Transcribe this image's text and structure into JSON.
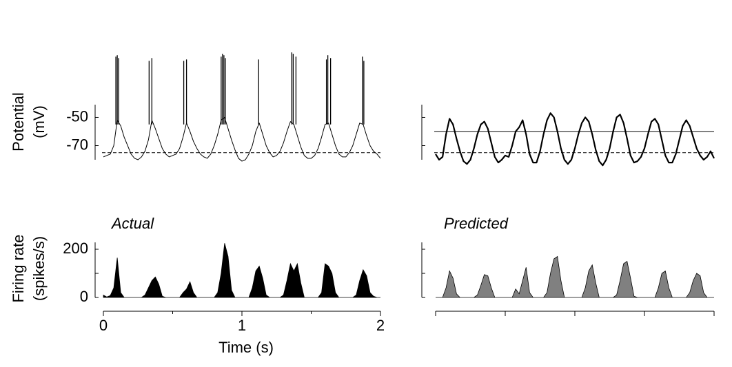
{
  "chart_data": [
    {
      "type": "line",
      "ylabel": [
        "Potential",
        "(mV)"
      ],
      "xlim": [
        0,
        2
      ],
      "ylim": [
        -80,
        -2
      ],
      "yticks": [
        -50,
        -70
      ],
      "tick_labels": true,
      "x": [
        0,
        0.025,
        0.05,
        0.075,
        0.1,
        0.125,
        0.15,
        0.175,
        0.2,
        0.225,
        0.25,
        0.275,
        0.3,
        0.325,
        0.35,
        0.375,
        0.4,
        0.425,
        0.45,
        0.475,
        0.5,
        0.525,
        0.55,
        0.575,
        0.6,
        0.625,
        0.65,
        0.675,
        0.7,
        0.725,
        0.75,
        0.775,
        0.8,
        0.825,
        0.85,
        0.875,
        0.9,
        0.925,
        0.95,
        0.975,
        1,
        1.025,
        1.05,
        1.075,
        1.1,
        1.125,
        1.15,
        1.175,
        1.2,
        1.225,
        1.25,
        1.275,
        1.3,
        1.325,
        1.35,
        1.375,
        1.4,
        1.425,
        1.45,
        1.475,
        1.5,
        1.525,
        1.55,
        1.575,
        1.6,
        1.625,
        1.65,
        1.675,
        1.7,
        1.725,
        1.75,
        1.775,
        1.8,
        1.825,
        1.85,
        1.875,
        1.9,
        1.925,
        1.95,
        1.975,
        2
      ],
      "values": [
        -78,
        -77,
        -76,
        -70,
        -52,
        -56,
        -64,
        -70,
        -76,
        -79,
        -80,
        -78,
        -74,
        -66,
        -52,
        -58,
        -65,
        -72,
        -76,
        -78,
        -77,
        -76,
        -72,
        -64,
        -54,
        -60,
        -67,
        -72,
        -76,
        -78,
        -79,
        -76,
        -70,
        -62,
        -52,
        -50,
        -58,
        -66,
        -73,
        -79,
        -81,
        -80,
        -76,
        -70,
        -60,
        -54,
        -62,
        -70,
        -75,
        -78,
        -77,
        -74,
        -68,
        -60,
        -53,
        -55,
        -63,
        -71,
        -77,
        -79,
        -79,
        -77,
        -72,
        -64,
        -55,
        -54,
        -62,
        -70,
        -76,
        -78,
        -78,
        -75,
        -70,
        -62,
        -54,
        -55,
        -63,
        -70,
        -74,
        -76,
        -79
      ],
      "color": "#000000",
      "line_width": 1,
      "spikes": {
        "x": [
          0.09,
          0.1,
          0.11,
          0.33,
          0.35,
          0.58,
          0.6,
          0.85,
          0.86,
          0.87,
          0.88,
          1.12,
          1.36,
          1.37,
          1.39,
          1.61,
          1.62,
          1.64,
          1.87,
          1.88
        ],
        "values": [
          -7,
          -6,
          -8,
          -10,
          -8,
          -10,
          -9,
          -7,
          -5,
          -6,
          -8,
          -9,
          -4,
          -5,
          -7,
          -9,
          -6,
          -8,
          -7,
          -10
        ]
      },
      "reference_lines": [
        {
          "value": -75,
          "style": "dashed"
        }
      ]
    },
    {
      "type": "line",
      "xlim": [
        0,
        2
      ],
      "ylim": [
        -80,
        -2
      ],
      "yticks": [
        -50,
        -70
      ],
      "tick_labels": false,
      "x": [
        0,
        0.025,
        0.05,
        0.075,
        0.1,
        0.125,
        0.15,
        0.175,
        0.2,
        0.225,
        0.25,
        0.275,
        0.3,
        0.325,
        0.35,
        0.375,
        0.4,
        0.425,
        0.45,
        0.475,
        0.5,
        0.525,
        0.55,
        0.575,
        0.6,
        0.625,
        0.65,
        0.675,
        0.7,
        0.725,
        0.75,
        0.775,
        0.8,
        0.825,
        0.85,
        0.875,
        0.9,
        0.925,
        0.95,
        0.975,
        1,
        1.025,
        1.05,
        1.075,
        1.1,
        1.125,
        1.15,
        1.175,
        1.2,
        1.225,
        1.25,
        1.275,
        1.3,
        1.325,
        1.35,
        1.375,
        1.4,
        1.425,
        1.45,
        1.475,
        1.5,
        1.525,
        1.55,
        1.575,
        1.6,
        1.625,
        1.65,
        1.675,
        1.7,
        1.725,
        1.75,
        1.775,
        1.8,
        1.825,
        1.85,
        1.875,
        1.9,
        1.925,
        1.95,
        1.975,
        2
      ],
      "values": [
        -76,
        -80,
        -78,
        -62,
        -51,
        -55,
        -65,
        -74,
        -81,
        -83,
        -80,
        -72,
        -62,
        -55,
        -53,
        -58,
        -68,
        -78,
        -82,
        -80,
        -77,
        -78,
        -70,
        -60,
        -57,
        -52,
        -62,
        -76,
        -82,
        -82,
        -74,
        -62,
        -52,
        -47,
        -50,
        -60,
        -72,
        -80,
        -83,
        -80,
        -72,
        -62,
        -54,
        -50,
        -53,
        -62,
        -73,
        -81,
        -84,
        -80,
        -72,
        -60,
        -50,
        -48,
        -54,
        -65,
        -77,
        -82,
        -81,
        -78,
        -72,
        -62,
        -53,
        -51,
        -55,
        -66,
        -77,
        -82,
        -82,
        -76,
        -66,
        -56,
        -52,
        -56,
        -64,
        -72,
        -77,
        -80,
        -78,
        -74,
        -79
      ],
      "color": "#000000",
      "line_width": 2.2,
      "reference_lines": [
        {
          "value": -60,
          "style": "solid"
        },
        {
          "value": -75,
          "style": "dashed"
        }
      ]
    },
    {
      "type": "area",
      "title": "Actual",
      "ylabel": [
        "Firing rate",
        "(spikes/s)"
      ],
      "xlabel": "Time (s)",
      "xlim": [
        0,
        2
      ],
      "xticks": [
        0,
        1,
        2
      ],
      "xminorticks": [
        0.5,
        1.5
      ],
      "ylim": [
        0,
        230
      ],
      "yticks": [
        0,
        200
      ],
      "yminorticks": [
        100
      ],
      "tick_labels": true,
      "x": [
        0,
        0.025,
        0.05,
        0.075,
        0.1,
        0.125,
        0.15,
        0.175,
        0.2,
        0.225,
        0.25,
        0.275,
        0.3,
        0.325,
        0.35,
        0.375,
        0.4,
        0.425,
        0.45,
        0.475,
        0.5,
        0.525,
        0.55,
        0.575,
        0.6,
        0.625,
        0.65,
        0.675,
        0.7,
        0.725,
        0.75,
        0.775,
        0.8,
        0.825,
        0.85,
        0.875,
        0.9,
        0.925,
        0.95,
        0.975,
        1,
        1.025,
        1.05,
        1.075,
        1.1,
        1.125,
        1.15,
        1.175,
        1.2,
        1.225,
        1.25,
        1.275,
        1.3,
        1.325,
        1.35,
        1.375,
        1.4,
        1.425,
        1.45,
        1.475,
        1.5,
        1.525,
        1.55,
        1.575,
        1.6,
        1.625,
        1.65,
        1.675,
        1.7,
        1.725,
        1.75,
        1.775,
        1.8,
        1.825,
        1.85,
        1.875,
        1.9,
        1.925,
        1.95,
        1.975,
        2
      ],
      "values": [
        10,
        2,
        8,
        40,
        165,
        20,
        0,
        0,
        0,
        0,
        0,
        0,
        10,
        40,
        70,
        85,
        55,
        5,
        0,
        0,
        0,
        0,
        0,
        20,
        35,
        65,
        20,
        0,
        0,
        0,
        0,
        0,
        0,
        20,
        100,
        225,
        170,
        30,
        0,
        0,
        0,
        0,
        0,
        40,
        110,
        130,
        80,
        10,
        0,
        0,
        0,
        0,
        10,
        70,
        140,
        110,
        140,
        60,
        0,
        0,
        0,
        0,
        0,
        20,
        140,
        130,
        100,
        20,
        0,
        0,
        0,
        0,
        0,
        10,
        70,
        115,
        90,
        20,
        5,
        0,
        0
      ],
      "color": "#000000"
    },
    {
      "type": "area",
      "title": "Predicted",
      "xlim": [
        0,
        2
      ],
      "xticks": [
        0,
        0.5,
        1,
        1.5,
        2
      ],
      "ylim": [
        0,
        230
      ],
      "yticks": [
        0,
        100,
        200
      ],
      "tick_labels": false,
      "x": [
        0,
        0.025,
        0.05,
        0.075,
        0.1,
        0.125,
        0.15,
        0.175,
        0.2,
        0.225,
        0.25,
        0.275,
        0.3,
        0.325,
        0.35,
        0.375,
        0.4,
        0.425,
        0.45,
        0.475,
        0.5,
        0.525,
        0.55,
        0.575,
        0.6,
        0.625,
        0.65,
        0.675,
        0.7,
        0.725,
        0.75,
        0.775,
        0.8,
        0.825,
        0.85,
        0.875,
        0.9,
        0.925,
        0.95,
        0.975,
        1,
        1.025,
        1.05,
        1.075,
        1.1,
        1.125,
        1.15,
        1.175,
        1.2,
        1.225,
        1.25,
        1.275,
        1.3,
        1.325,
        1.35,
        1.375,
        1.4,
        1.425,
        1.45,
        1.475,
        1.5,
        1.525,
        1.55,
        1.575,
        1.6,
        1.625,
        1.65,
        1.675,
        1.7,
        1.725,
        1.75,
        1.775,
        1.8,
        1.825,
        1.85,
        1.875,
        1.9,
        1.925,
        1.95,
        1.975,
        2
      ],
      "values": [
        0,
        0,
        0,
        40,
        110,
        80,
        15,
        0,
        0,
        0,
        0,
        0,
        10,
        50,
        95,
        90,
        40,
        0,
        0,
        0,
        0,
        0,
        0,
        35,
        15,
        70,
        125,
        20,
        0,
        0,
        0,
        0,
        20,
        100,
        160,
        170,
        70,
        0,
        0,
        0,
        0,
        0,
        0,
        40,
        110,
        135,
        60,
        0,
        0,
        0,
        0,
        0,
        10,
        70,
        140,
        150,
        80,
        5,
        0,
        0,
        0,
        0,
        0,
        0,
        40,
        100,
        110,
        40,
        0,
        0,
        0,
        0,
        0,
        20,
        70,
        100,
        90,
        20,
        0,
        0,
        0
      ],
      "color": "#808080"
    }
  ]
}
